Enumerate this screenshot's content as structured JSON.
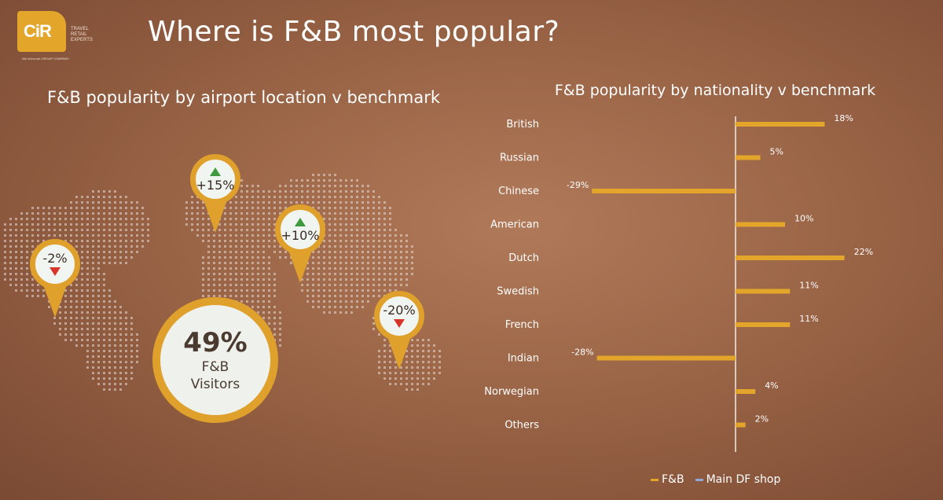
{
  "logo": {
    "mark": "CiR",
    "tagline": "TRAVEL RETAIL EXPERTS",
    "footer": "AN m1nd-set GROUP COMPANY"
  },
  "title": "Where is F&B most popular?",
  "left_title": "F&B popularity by airport location v benchmark",
  "right_title": "F&B popularity by nationality v benchmark",
  "pins": [
    {
      "value": "-2%",
      "direction": "down"
    },
    {
      "value": "+15%",
      "direction": "up"
    },
    {
      "value": "+10%",
      "direction": "up"
    },
    {
      "value": "-20%",
      "direction": "down"
    }
  ],
  "highlight": {
    "value": "49%",
    "line1": "F&B",
    "line2": "Visitors"
  },
  "colors": {
    "accent": "#e0a02c",
    "up": "#3d9a3d",
    "down": "#d8352a",
    "series_fnb": "#e3a62a",
    "series_df": "#8fa8d8"
  },
  "chart_data": {
    "type": "bar",
    "orientation": "horizontal",
    "title": "F&B popularity by nationality v benchmark",
    "categories": [
      "British",
      "Russian",
      "Chinese",
      "American",
      "Dutch",
      "Swedish",
      "French",
      "Indian",
      "Norwegian",
      "Others"
    ],
    "series": [
      {
        "name": "F&B",
        "values": [
          18,
          5,
          -29,
          10,
          22,
          11,
          11,
          -28,
          4,
          2
        ]
      }
    ],
    "data_labels": [
      "18%",
      "5%",
      "-29%",
      "10%",
      "22%",
      "11%",
      "11%",
      "-28%",
      "4%",
      "2%"
    ],
    "legend": [
      "F&B",
      "Main DF shop"
    ],
    "legend_position": "bottom"
  }
}
